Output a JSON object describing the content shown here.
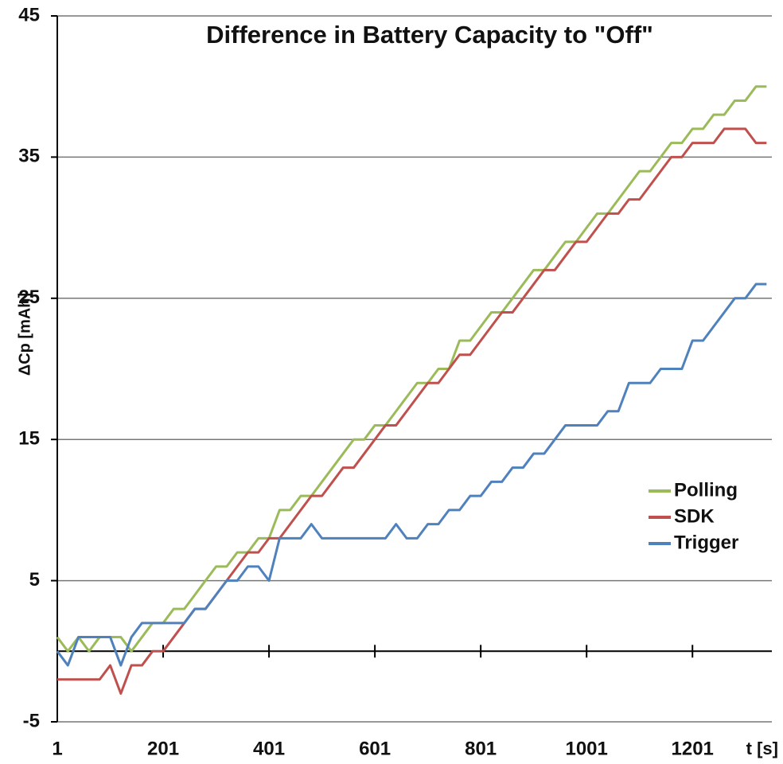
{
  "chart_data": {
    "type": "line",
    "title": "Difference in Battery Capacity to \"Off\"",
    "y_label": "ΔCp [mAh]",
    "x_label": "t [s]",
    "x": [
      1,
      21,
      41,
      61,
      81,
      101,
      121,
      141,
      161,
      181,
      201,
      221,
      241,
      261,
      281,
      301,
      321,
      341,
      361,
      381,
      401,
      421,
      441,
      461,
      481,
      501,
      521,
      541,
      561,
      581,
      601,
      621,
      641,
      661,
      681,
      701,
      721,
      741,
      761,
      781,
      801,
      821,
      841,
      861,
      881,
      901,
      921,
      941,
      961,
      981,
      1001,
      1021,
      1041,
      1061,
      1081,
      1101,
      1121,
      1141,
      1161,
      1181,
      1201,
      1221,
      1241,
      1261,
      1281,
      1301,
      1321,
      1341
    ],
    "series": [
      {
        "name": "Polling",
        "color": "#9bbb59",
        "values": [
          1,
          0,
          1,
          0,
          1,
          1,
          1,
          0,
          1,
          2,
          2,
          3,
          3,
          4,
          5,
          6,
          6,
          7,
          7,
          8,
          8,
          10,
          10,
          11,
          11,
          12,
          13,
          14,
          15,
          15,
          16,
          16,
          17,
          18,
          19,
          19,
          20,
          20,
          22,
          22,
          23,
          24,
          24,
          25,
          26,
          27,
          27,
          28,
          29,
          29,
          30,
          31,
          31,
          32,
          33,
          34,
          34,
          35,
          36,
          36,
          37,
          37,
          38,
          38,
          39,
          39,
          40,
          40
        ]
      },
      {
        "name": "SDK",
        "color": "#c0504d",
        "values": [
          -2,
          -2,
          -2,
          -2,
          -2,
          -1,
          -3,
          -1,
          -1,
          0,
          0,
          1,
          2,
          3,
          3,
          4,
          5,
          6,
          7,
          7,
          8,
          8,
          9,
          10,
          11,
          11,
          12,
          13,
          13,
          14,
          15,
          16,
          16,
          17,
          18,
          19,
          19,
          20,
          21,
          21,
          22,
          23,
          24,
          24,
          25,
          26,
          27,
          27,
          28,
          29,
          29,
          30,
          31,
          31,
          32,
          32,
          33,
          34,
          35,
          35,
          36,
          36,
          36,
          37,
          37,
          37,
          36,
          36
        ]
      },
      {
        "name": "Trigger",
        "color": "#4f81bd",
        "values": [
          0,
          -1,
          1,
          1,
          1,
          1,
          -1,
          1,
          2,
          2,
          2,
          2,
          2,
          3,
          3,
          4,
          5,
          5,
          6,
          6,
          5,
          8,
          8,
          8,
          9,
          8,
          8,
          8,
          8,
          8,
          8,
          8,
          9,
          8,
          8,
          9,
          9,
          10,
          10,
          11,
          11,
          12,
          12,
          13,
          13,
          14,
          14,
          15,
          16,
          16,
          16,
          16,
          17,
          17,
          19,
          19,
          19,
          20,
          20,
          20,
          22,
          22,
          23,
          24,
          25,
          25,
          26,
          26
        ]
      }
    ],
    "xlim": [
      1,
      1351
    ],
    "xticks": [
      1,
      201,
      401,
      601,
      801,
      1001,
      1201
    ],
    "ylim": [
      -5,
      45
    ],
    "yticks": [
      -5,
      5,
      15,
      25,
      35,
      45
    ],
    "grid": true,
    "legend": "right"
  }
}
